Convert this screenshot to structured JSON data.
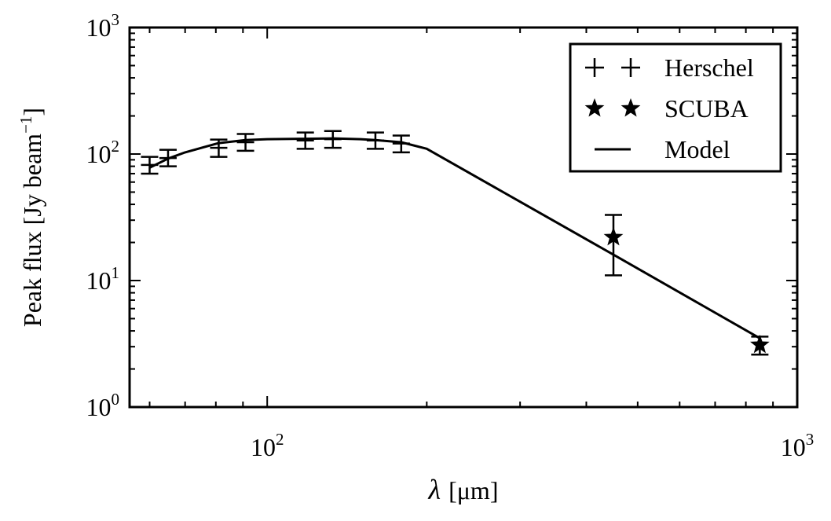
{
  "chart_data": {
    "type": "scatter",
    "title": "",
    "xlabel": {
      "symbol": "λ",
      "unit": "[μm]"
    },
    "ylabel": {
      "main": "Peak flux [Jy beam",
      "sup": "−1",
      "close": "]"
    },
    "xscale": "log",
    "yscale": "log",
    "xlim": [
      55,
      1000
    ],
    "ylim": [
      1,
      1000
    ],
    "grid": false,
    "legend_position": "top-right",
    "x_ticks": [
      {
        "value": 100,
        "base": "10",
        "exp": "2"
      },
      {
        "value": 1000,
        "base": "10",
        "exp": "3"
      }
    ],
    "y_ticks": [
      {
        "value": 1,
        "base": "10",
        "exp": "0"
      },
      {
        "value": 10,
        "base": "10",
        "exp": "1"
      },
      {
        "value": 100,
        "base": "10",
        "exp": "2"
      },
      {
        "value": 1000,
        "base": "10",
        "exp": "3"
      }
    ],
    "series": [
      {
        "name": "Herschel",
        "marker": "plus",
        "points": [
          {
            "x": 60,
            "y": 82,
            "yerr_low": 70,
            "yerr_high": 95
          },
          {
            "x": 65,
            "y": 93,
            "yerr_low": 80,
            "yerr_high": 108
          },
          {
            "x": 81,
            "y": 112,
            "yerr_low": 95,
            "yerr_high": 130
          },
          {
            "x": 91,
            "y": 124,
            "yerr_low": 106,
            "yerr_high": 144
          },
          {
            "x": 118,
            "y": 128,
            "yerr_low": 110,
            "yerr_high": 148
          },
          {
            "x": 133,
            "y": 131,
            "yerr_low": 112,
            "yerr_high": 152
          },
          {
            "x": 160,
            "y": 128,
            "yerr_low": 110,
            "yerr_high": 148
          },
          {
            "x": 179,
            "y": 121,
            "yerr_low": 103,
            "yerr_high": 140
          }
        ]
      },
      {
        "name": "SCUBA",
        "marker": "star",
        "points": [
          {
            "x": 450,
            "y": 22,
            "yerr_low": 11,
            "yerr_high": 33
          },
          {
            "x": 850,
            "y": 3.1,
            "yerr_low": 2.6,
            "yerr_high": 3.6
          }
        ]
      }
    ],
    "model": {
      "name": "Model",
      "x": [
        60,
        65,
        70,
        81,
        91,
        100,
        118,
        133,
        150,
        160,
        179,
        200,
        450,
        850
      ],
      "y": [
        78,
        92,
        103,
        122,
        129,
        131,
        132,
        133,
        131,
        129,
        124,
        110,
        16,
        3.5
      ]
    },
    "legend": [
      {
        "label": "Herschel",
        "marker": "plus"
      },
      {
        "label": "SCUBA",
        "marker": "star"
      },
      {
        "label": "Model",
        "marker": "line"
      }
    ]
  }
}
